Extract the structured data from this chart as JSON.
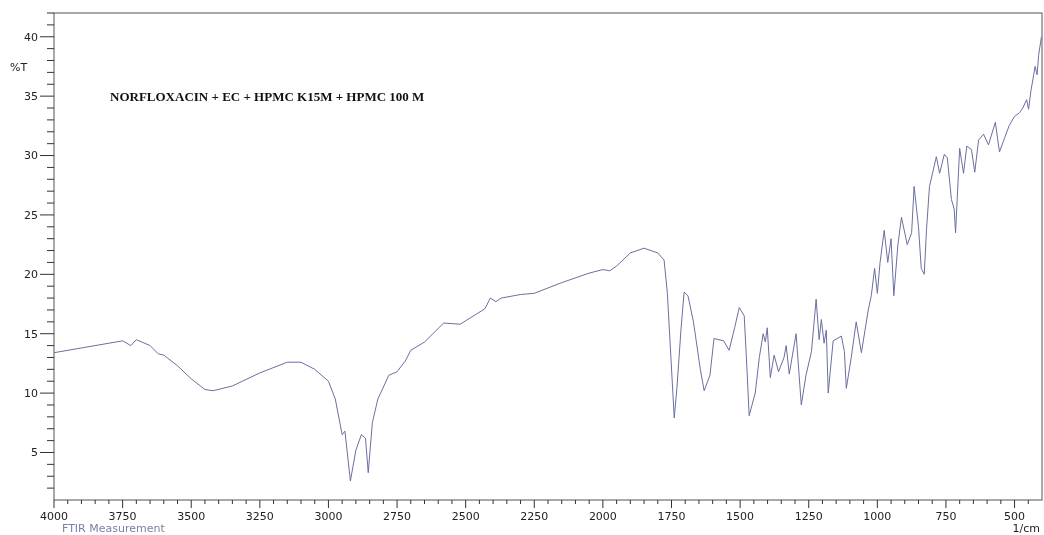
{
  "chart_data": {
    "type": "line",
    "title": "NORFLOXACIN + EC + HPMC K15M + HPMC 100 M",
    "xlabel": "1/cm",
    "ylabel": "%T",
    "annotations": [
      "FTIR Measurement"
    ],
    "xlim": [
      4000,
      400
    ],
    "ylim": [
      1,
      42
    ],
    "grid": false,
    "line_style": "solid",
    "marker": "none",
    "xticks": [
      4000,
      {
        "value": 3950,
        "label": null
      },
      {
        "value": 3900,
        "label": null
      },
      {
        "value": 3850,
        "label": null
      },
      {
        "value": 3800,
        "label": null
      },
      3750,
      {
        "value": 3700,
        "label": null
      },
      {
        "value": 3650,
        "label": null
      },
      {
        "value": 3600,
        "label": null
      },
      {
        "value": 3550,
        "label": null
      },
      3500,
      {
        "value": 3450,
        "label": null
      },
      {
        "value": 3400,
        "label": null
      },
      {
        "value": 3350,
        "label": null
      },
      {
        "value": 3300,
        "label": null
      },
      3250,
      {
        "value": 3200,
        "label": null
      },
      {
        "value": 3150,
        "label": null
      },
      {
        "value": 3100,
        "label": null
      },
      {
        "value": 3050,
        "label": null
      },
      3000,
      {
        "value": 2950,
        "label": null
      },
      {
        "value": 2900,
        "label": null
      },
      {
        "value": 2850,
        "label": null
      },
      {
        "value": 2800,
        "label": null
      },
      2750,
      {
        "value": 2700,
        "label": null
      },
      {
        "value": 2650,
        "label": null
      },
      {
        "value": 2600,
        "label": null
      },
      {
        "value": 2550,
        "label": null
      },
      2500,
      {
        "value": 2450,
        "label": null
      },
      {
        "value": 2400,
        "label": null
      },
      {
        "value": 2350,
        "label": null
      },
      {
        "value": 2300,
        "label": null
      },
      2250,
      {
        "value": 2200,
        "label": null
      },
      {
        "value": 2150,
        "label": null
      },
      {
        "value": 2100,
        "label": null
      },
      {
        "value": 2050,
        "label": null
      },
      2000,
      {
        "value": 1950,
        "label": null
      },
      {
        "value": 1900,
        "label": null
      },
      {
        "value": 1850,
        "label": null
      },
      {
        "value": 1800,
        "label": null
      },
      1750,
      {
        "value": 1700,
        "label": null
      },
      {
        "value": 1650,
        "label": null
      },
      {
        "value": 1600,
        "label": null
      },
      {
        "value": 1550,
        "label": null
      },
      1500,
      {
        "value": 1450,
        "label": null
      },
      {
        "value": 1400,
        "label": null
      },
      {
        "value": 1350,
        "label": null
      },
      {
        "value": 1300,
        "label": null
      },
      1250,
      {
        "value": 1200,
        "label": null
      },
      {
        "value": 1150,
        "label": null
      },
      {
        "value": 1100,
        "label": null
      },
      {
        "value": 1050,
        "label": null
      },
      1000,
      {
        "value": 950,
        "label": null
      },
      {
        "value": 900,
        "label": null
      },
      {
        "value": 850,
        "label": null
      },
      {
        "value": 800,
        "label": null
      },
      750,
      {
        "value": 700,
        "label": null
      },
      {
        "value": 650,
        "label": null
      },
      {
        "value": 600,
        "label": null
      },
      {
        "value": 550,
        "label": null
      },
      500,
      {
        "value": 450,
        "label": null
      }
    ],
    "yticks": [
      {
        "value": 2,
        "label": null
      },
      {
        "value": 3,
        "label": null
      },
      {
        "value": 4,
        "label": null
      },
      5,
      {
        "value": 6,
        "label": null
      },
      {
        "value": 7,
        "label": null
      },
      {
        "value": 8,
        "label": null
      },
      {
        "value": 9,
        "label": null
      },
      10,
      {
        "value": 11,
        "label": null
      },
      {
        "value": 12,
        "label": null
      },
      {
        "value": 13,
        "label": null
      },
      {
        "value": 14,
        "label": null
      },
      15,
      {
        "value": 16,
        "label": null
      },
      {
        "value": 17,
        "label": null
      },
      {
        "value": 18,
        "label": null
      },
      {
        "value": 19,
        "label": null
      },
      20,
      {
        "value": 21,
        "label": null
      },
      {
        "value": 22,
        "label": null
      },
      {
        "value": 23,
        "label": null
      },
      {
        "value": 24,
        "label": null
      },
      25,
      {
        "value": 26,
        "label": null
      },
      {
        "value": 27,
        "label": null
      },
      {
        "value": 28,
        "label": null
      },
      {
        "value": 29,
        "label": null
      },
      30,
      {
        "value": 31,
        "label": null
      },
      {
        "value": 32,
        "label": null
      },
      {
        "value": 33,
        "label": null
      },
      {
        "value": 34,
        "label": null
      },
      35,
      {
        "value": 36,
        "label": null
      },
      {
        "value": 37,
        "label": null
      },
      {
        "value": 38,
        "label": null
      },
      {
        "value": 39,
        "label": null
      },
      40,
      {
        "value": 41,
        "label": null
      },
      {
        "value": 42,
        "label": null
      }
    ],
    "series": [
      {
        "color": "#6b6fa0",
        "x": [
          4000,
          3900,
          3800,
          3750,
          3720,
          3700,
          3650,
          3620,
          3600,
          3550,
          3500,
          3450,
          3420,
          3350,
          3250,
          3150,
          3100,
          3050,
          3000,
          2975,
          2950,
          2940,
          2920,
          2900,
          2880,
          2865,
          2855,
          2840,
          2820,
          2780,
          2750,
          2720,
          2700,
          2650,
          2580,
          2520,
          2430,
          2410,
          2390,
          2370,
          2300,
          2250,
          2150,
          2050,
          2000,
          1975,
          1950,
          1900,
          1850,
          1800,
          1777,
          1765,
          1740,
          1730,
          1715,
          1704,
          1690,
          1670,
          1645,
          1631,
          1610,
          1595,
          1560,
          1540,
          1520,
          1503,
          1485,
          1475,
          1467,
          1445,
          1430,
          1416,
          1408,
          1401,
          1390,
          1376,
          1360,
          1340,
          1332,
          1321,
          1296,
          1285,
          1277,
          1260,
          1240,
          1223,
          1212,
          1204,
          1194,
          1186,
          1179,
          1161,
          1131,
          1120,
          1113,
          1095,
          1077,
          1058,
          1033,
          1022,
          1010,
          1000,
          990,
          975,
          962,
          950,
          940,
          925,
          912,
          891,
          875,
          866,
          850,
          840,
          829,
          821,
          810,
          785,
          773,
          756,
          745,
          730,
          720,
          715,
          700,
          686,
          674,
          657,
          645,
          631,
          613,
          595,
          570,
          555,
          536,
          520,
          500,
          482,
          470,
          456,
          449,
          440,
          431,
          425,
          418,
          412,
          402
        ],
        "values": [
          13.4,
          13.8,
          14.2,
          14.4,
          14.0,
          14.5,
          14.0,
          13.3,
          13.2,
          12.3,
          11.2,
          10.3,
          10.2,
          10.6,
          11.7,
          12.6,
          12.6,
          12.0,
          11.0,
          9.5,
          6.5,
          6.8,
          2.6,
          5.2,
          6.5,
          6.2,
          3.3,
          7.5,
          9.5,
          11.5,
          11.8,
          12.7,
          13.6,
          14.3,
          15.9,
          15.8,
          17.1,
          18.0,
          17.7,
          18.0,
          18.3,
          18.4,
          19.3,
          20.1,
          20.4,
          20.3,
          20.7,
          21.8,
          22.2,
          21.8,
          21.2,
          18.4,
          7.9,
          10.5,
          15.5,
          18.5,
          18.2,
          16.0,
          12.0,
          10.2,
          11.5,
          14.6,
          14.4,
          13.6,
          15.5,
          17.2,
          16.5,
          12.0,
          8.1,
          10.0,
          13.0,
          15.0,
          14.3,
          15.5,
          11.3,
          13.2,
          11.8,
          13.0,
          14.0,
          11.6,
          15.0,
          11.5,
          9.0,
          11.5,
          13.5,
          17.9,
          14.5,
          16.2,
          14.2,
          15.3,
          10.0,
          14.4,
          14.8,
          13.5,
          10.4,
          13.0,
          16.0,
          13.4,
          17.0,
          18.2,
          20.5,
          18.4,
          21.0,
          23.7,
          21.0,
          23.0,
          18.2,
          22.5,
          24.8,
          22.5,
          23.5,
          27.4,
          24.0,
          20.5,
          20.0,
          23.7,
          27.4,
          29.9,
          28.5,
          30.1,
          29.8,
          26.3,
          25.5,
          23.5,
          30.6,
          28.5,
          30.8,
          30.5,
          28.6,
          31.3,
          31.8,
          30.9,
          32.8,
          30.3,
          31.5,
          32.5,
          33.3,
          33.6,
          34.0,
          34.7,
          33.9,
          35.5,
          36.7,
          37.5,
          36.8,
          38.5,
          40.0
        ]
      }
    ]
  }
}
